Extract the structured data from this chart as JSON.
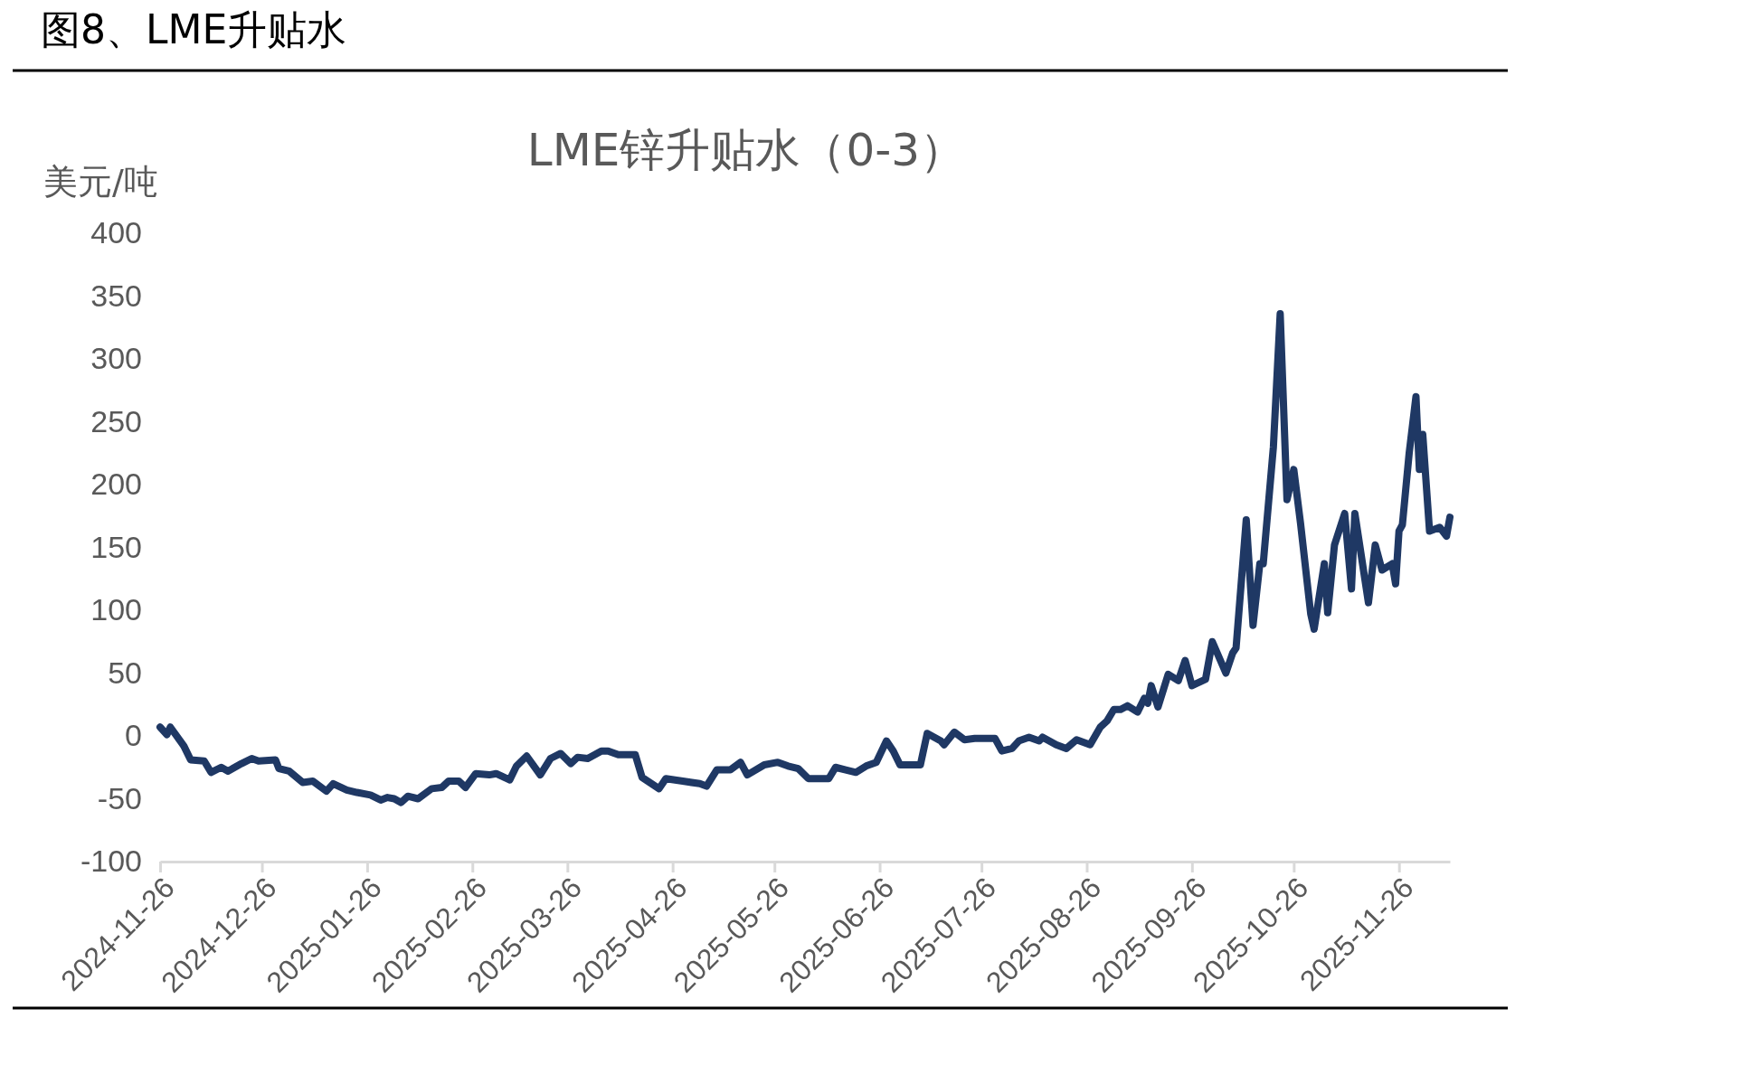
{
  "chart_data": {
    "type": "line",
    "title": "图8、LME升贴水",
    "subtitle": "LME锌升贴水（0-3）",
    "ylabel": "美元/吨",
    "x": [
      "2024-11-26",
      "2024-11-28",
      "2024-11-29",
      "2024-12-03",
      "2024-12-05",
      "2024-12-09",
      "2024-12-11",
      "2024-12-14",
      "2024-12-16",
      "2024-12-20",
      "2024-12-23",
      "2024-12-25",
      "2024-12-30",
      "2024-12-31",
      "2025-01-03",
      "2025-01-07",
      "2025-01-10",
      "2025-01-14",
      "2025-01-16",
      "2025-01-20",
      "2025-01-23",
      "2025-01-27",
      "2025-01-30",
      "2025-02-01",
      "2025-02-03",
      "2025-02-05",
      "2025-02-07",
      "2025-02-10",
      "2025-02-14",
      "2025-02-17",
      "2025-02-19",
      "2025-02-22",
      "2025-02-24",
      "2025-02-27",
      "2025-03-03",
      "2025-03-05",
      "2025-03-09",
      "2025-03-11",
      "2025-03-14",
      "2025-03-18",
      "2025-03-21",
      "2025-03-24",
      "2025-03-27",
      "2025-03-29",
      "2025-04-01",
      "2025-04-05",
      "2025-04-07",
      "2025-04-10",
      "2025-04-15",
      "2025-04-17",
      "2025-04-22",
      "2025-04-24",
      "2025-04-29",
      "2025-05-04",
      "2025-05-06",
      "2025-05-09",
      "2025-05-13",
      "2025-05-16",
      "2025-05-18",
      "2025-05-23",
      "2025-05-27",
      "2025-05-30",
      "2025-06-02",
      "2025-06-05",
      "2025-06-11",
      "2025-06-13",
      "2025-06-16",
      "2025-06-19",
      "2025-06-22",
      "2025-06-25",
      "2025-06-28",
      "2025-06-30",
      "2025-07-02",
      "2025-07-08",
      "2025-07-10",
      "2025-07-14",
      "2025-07-15",
      "2025-07-18",
      "2025-07-21",
      "2025-07-24",
      "2025-07-30",
      "2025-08-01",
      "2025-08-04",
      "2025-08-06",
      "2025-08-09",
      "2025-08-12",
      "2025-08-13",
      "2025-08-17",
      "2025-08-20",
      "2025-08-23",
      "2025-08-27",
      "2025-08-30",
      "2025-09-01",
      "2025-09-03",
      "2025-09-05",
      "2025-09-07",
      "2025-09-10",
      "2025-09-12",
      "2025-09-13",
      "2025-09-14",
      "2025-09-16",
      "2025-09-19",
      "2025-09-22",
      "2025-09-24",
      "2025-09-26",
      "2025-09-30",
      "2025-10-02",
      "2025-10-06",
      "2025-10-08",
      "2025-10-09",
      "2025-10-12",
      "2025-10-14",
      "2025-10-16",
      "2025-10-17",
      "2025-10-20",
      "2025-10-22",
      "2025-10-24",
      "2025-10-26",
      "2025-10-28",
      "2025-10-31",
      "2025-11-01",
      "2025-11-04",
      "2025-11-05",
      "2025-11-07",
      "2025-11-10",
      "2025-11-12",
      "2025-11-13",
      "2025-11-17",
      "2025-11-19",
      "2025-11-21",
      "2025-11-24",
      "2025-11-25",
      "2025-11-26",
      "2025-11-27",
      "2025-11-29",
      "2025-12-01",
      "2025-12-02",
      "2025-12-03",
      "2025-12-05",
      "2025-12-08",
      "2025-12-10",
      "2025-12-11"
    ],
    "series": [
      {
        "color": "#1f3864",
        "values": [
          7,
          1,
          7,
          -8,
          -19,
          -20,
          -29,
          -25,
          -28,
          -22,
          -18,
          -20,
          -19,
          -26,
          -28,
          -37,
          -36,
          -44,
          -38,
          -43,
          -45,
          -47,
          -51,
          -49,
          -50,
          -53,
          -48,
          -50,
          -42,
          -41,
          -36,
          -36,
          -41,
          -30,
          -31,
          -30,
          -35,
          -24,
          -16,
          -31,
          -18,
          -14,
          -22,
          -17,
          -18,
          -12,
          -12,
          -15,
          -15,
          -33,
          -42,
          -34,
          -36,
          -38,
          -40,
          -27,
          -27,
          -21,
          -31,
          -23,
          -21,
          -24,
          -26,
          -34,
          -34,
          -25,
          -27,
          -29,
          -24,
          -21,
          -4,
          -12,
          -23,
          -23,
          2,
          -4,
          -7,
          3,
          -3,
          -2,
          -2,
          -12,
          -10,
          -4,
          -1,
          -4,
          -1,
          -7,
          -10,
          -3,
          -7,
          7,
          12,
          21,
          21,
          24,
          19,
          30,
          26,
          40,
          23,
          49,
          44,
          60,
          40,
          45,
          75,
          50,
          66,
          70,
          172,
          88,
          137,
          137,
          230,
          336,
          188,
          212,
          169,
          97,
          85,
          137,
          98,
          152,
          177,
          117,
          177,
          106,
          152,
          132,
          137,
          121,
          163,
          168,
          225,
          270,
          212,
          240,
          163,
          166,
          159,
          174
        ]
      }
    ],
    "xlim": [
      "2024-11-26",
      "2025-12-11"
    ],
    "xticks": [
      "2024-11-26",
      "2024-12-26",
      "2025-01-26",
      "2025-02-26",
      "2025-03-26",
      "2025-04-26",
      "2025-05-26",
      "2025-06-26",
      "2025-07-26",
      "2025-08-26",
      "2025-09-26",
      "2025-10-26",
      "2025-11-26"
    ],
    "ylim": [
      -100,
      400
    ],
    "yticks": [
      -100,
      -50,
      0,
      50,
      100,
      150,
      200,
      250,
      300,
      350,
      400
    ],
    "grid": false,
    "marker": "none",
    "line_style": "solid"
  }
}
